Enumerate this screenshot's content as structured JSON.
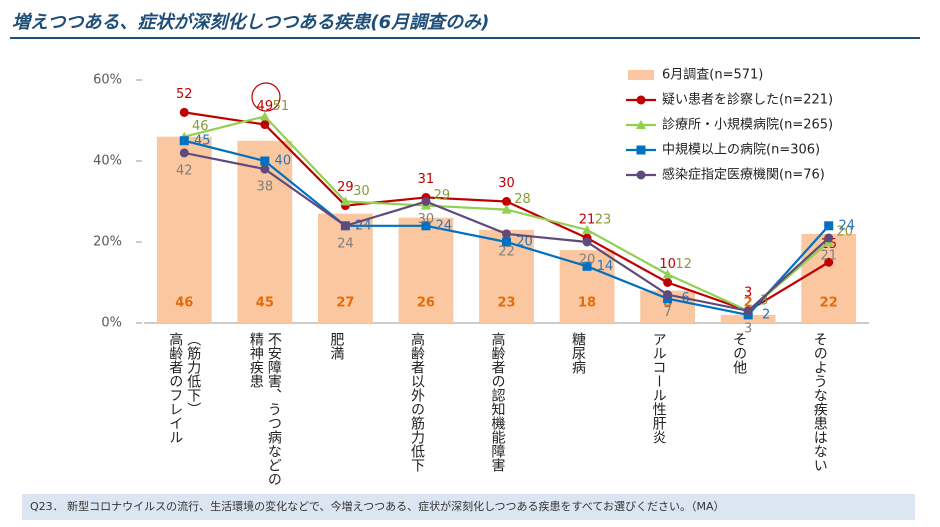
{
  "chart_data": {
    "type": "bar-line",
    "title": "増えつつある、症状が深刻化しつつある疾患(6月調査のみ)",
    "footnote": "Q23． 新型コロナウイルスの流行、生活環境の変化などで、今増えつつある、症状が深刻化しつつある疾患をすべてお選びください。（MA）",
    "categories": [
      "高齢者のフレイル\n（筋力低下）",
      "精神疾患\n不安障害、うつ病などの",
      "肥満",
      "高齢者以外の筋力低下",
      "高齢者の認知機能障害",
      "糖尿病",
      "アルコール性肝炎",
      "その他",
      "そのような疾患はない"
    ],
    "ylim": [
      0,
      60
    ],
    "yticks": [
      {
        "value": 0,
        "label": "0%"
      },
      {
        "value": 20,
        "label": "20%"
      },
      {
        "value": 40,
        "label": "40%"
      },
      {
        "value": 60,
        "label": "60%"
      }
    ],
    "series": [
      {
        "name": "6月調査(n=571)",
        "kind": "bar",
        "color": "#fac7a0",
        "label_color": "#e46c0a",
        "values": [
          46,
          45,
          27,
          26,
          23,
          18,
          8,
          2,
          22
        ]
      },
      {
        "name": "疑い患者を診察した(n=221)",
        "kind": "line",
        "marker": "circle",
        "color": "#c00000",
        "label_color": "#c00000",
        "values": [
          52,
          49,
          29,
          31,
          30,
          21,
          10,
          3,
          15
        ]
      },
      {
        "name": "診療所・小規模病院(n=265)",
        "kind": "line",
        "marker": "triangle",
        "color": "#92d050",
        "label_color": "#8a9a3a",
        "values": [
          46,
          51,
          30,
          29,
          28,
          23,
          12,
          3,
          20
        ]
      },
      {
        "name": "中規模以上の病院(n=306)",
        "kind": "line",
        "marker": "square",
        "color": "#0070c0",
        "label_color": "#2e75b6",
        "values": [
          45,
          40,
          24,
          24,
          20,
          14,
          6,
          2,
          24
        ]
      },
      {
        "name": "感染症指定医療機関(n=76)",
        "kind": "line",
        "marker": "circle",
        "color": "#604a7b",
        "label_color": "#7f7f7f",
        "values": [
          42,
          38,
          24,
          30,
          22,
          20,
          7,
          3,
          21
        ]
      }
    ],
    "legend": "upper right"
  }
}
